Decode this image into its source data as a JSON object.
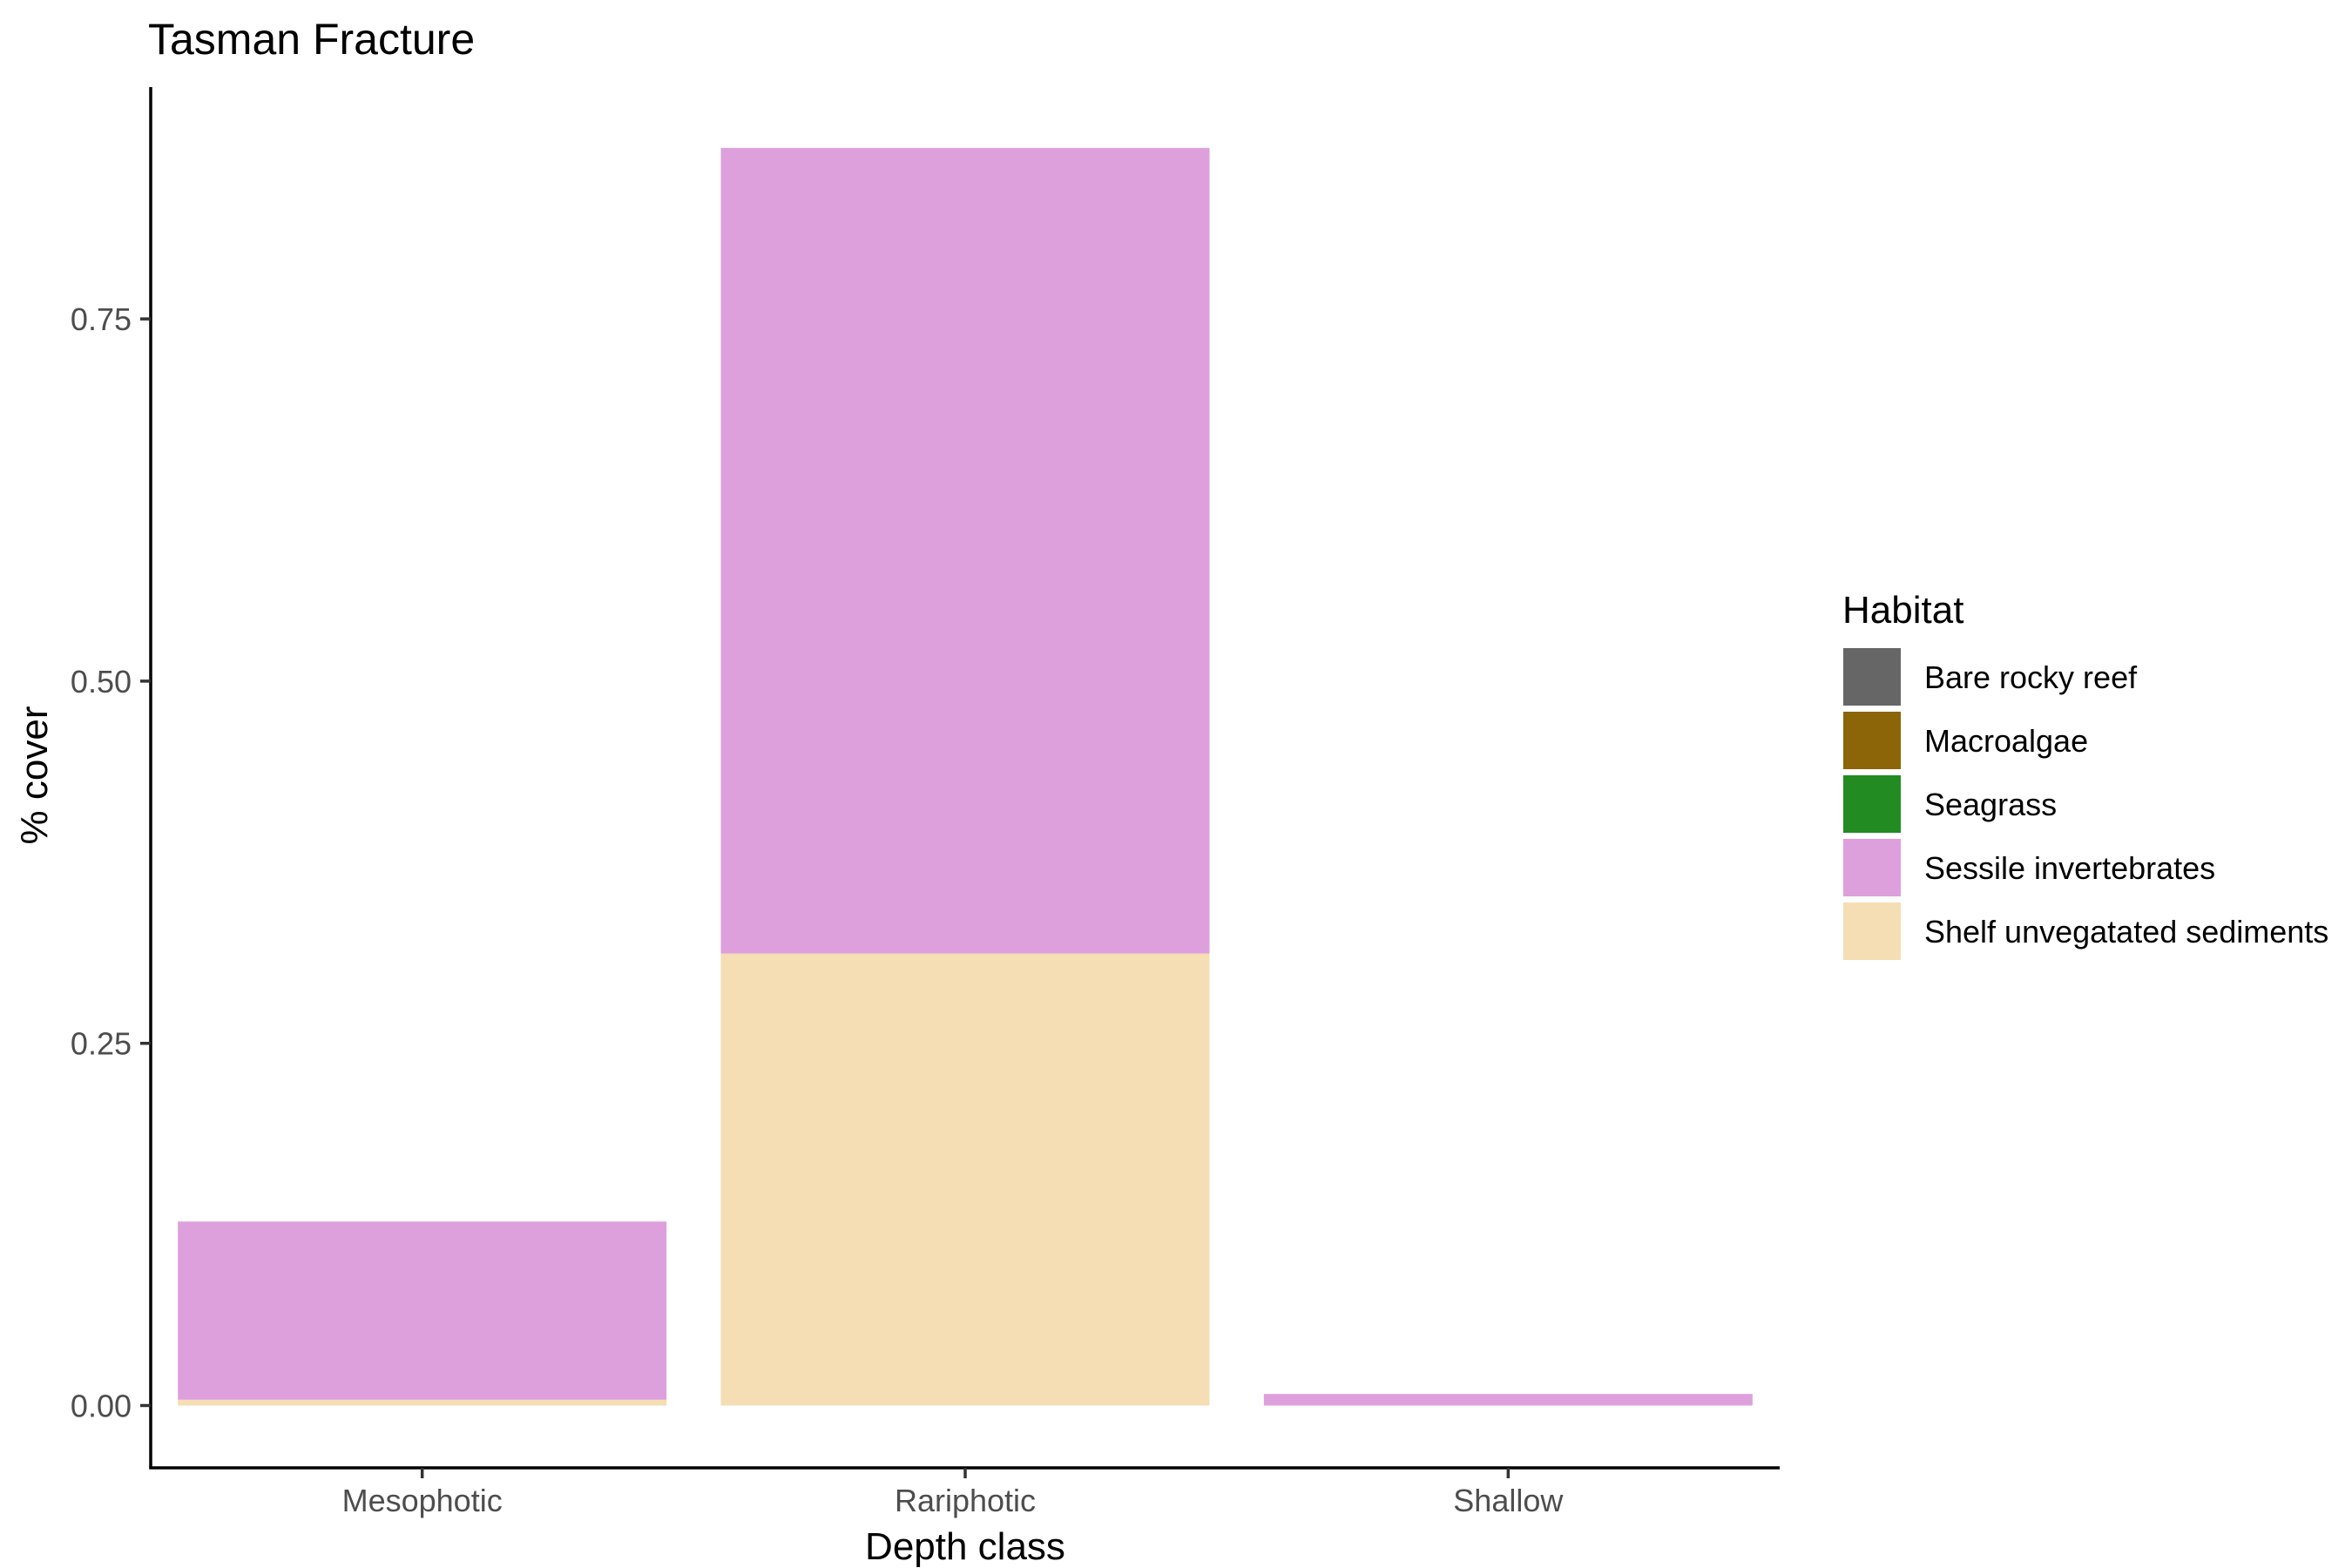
{
  "chart_data": {
    "type": "bar",
    "stacked": true,
    "title": "Tasman Fracture",
    "xlabel": "Depth class",
    "ylabel": "% cover",
    "categories": [
      "Mesophotic",
      "Rariphotic",
      "Shallow"
    ],
    "ylim": [
      -0.043,
      0.91
    ],
    "yticks": [
      0.0,
      0.25,
      0.5,
      0.75
    ],
    "ytick_labels": [
      "0.00",
      "0.25",
      "0.50",
      "0.75"
    ],
    "grid": false,
    "legend": {
      "title": "Habitat",
      "position": "right"
    },
    "series": [
      {
        "name": "Bare rocky reef",
        "color": "#666666",
        "values": [
          0,
          0,
          0
        ]
      },
      {
        "name": "Macroalgae",
        "color": "#8B6508",
        "values": [
          0,
          0,
          0
        ]
      },
      {
        "name": "Seagrass",
        "color": "#228B22",
        "values": [
          0,
          0,
          0
        ]
      },
      {
        "name": "Sessile invertebrates",
        "color": "#DDA0DD",
        "values": [
          0.123,
          0.556,
          0.008
        ]
      },
      {
        "name": "Shelf unvegatated sediments",
        "color": "#F5DEB3",
        "values": [
          0.004,
          0.312,
          0.0
        ]
      }
    ]
  }
}
